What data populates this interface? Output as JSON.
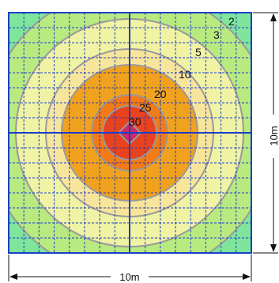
{
  "contour_values": [
    "2",
    "3",
    "5",
    "10",
    "20",
    "25",
    "30"
  ],
  "dimensions": {
    "width_label": "10m",
    "height_label": "10m"
  },
  "colors": {
    "c2": "#7fe59a",
    "c3": "#b9ea7f",
    "c5": "#f0f2a4",
    "c10": "#f7e59c",
    "c20": "#f0a21f",
    "c25": "#f27a17",
    "c30": "#e8431f",
    "peak": "#cc2a66",
    "grid_dashed": "#1a3fc8",
    "grid_main": "#1a3fc8",
    "contour_line": "#9a9a9a"
  }
}
